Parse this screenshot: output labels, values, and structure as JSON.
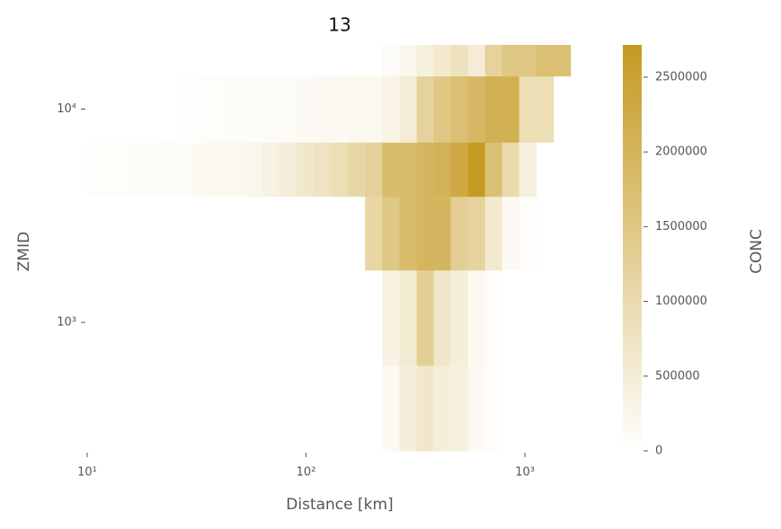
{
  "chart_data": {
    "type": "heatmap",
    "title": "13",
    "xlabel": "Distance [km]",
    "ylabel": "ZMID",
    "colorbar_label": "CONC",
    "xscale": "log",
    "yscale": "log",
    "xlim": [
      10,
      2500
    ],
    "ylim": [
      250,
      20000
    ],
    "xticks": [
      {
        "value": 10,
        "label": "10¹"
      },
      {
        "value": 100,
        "label": "10²"
      },
      {
        "value": 1000,
        "label": "10³"
      }
    ],
    "yticks": [
      {
        "value": 1000,
        "label": "10³"
      },
      {
        "value": 10000,
        "label": "10⁴"
      }
    ],
    "xedges": [
      10,
      12,
      15,
      18,
      22,
      26,
      31,
      37,
      44,
      53,
      63,
      75,
      90,
      108,
      130,
      155,
      186,
      223,
      267,
      320,
      383,
      458,
      549,
      657,
      786,
      941,
      1127,
      1349,
      1614
    ],
    "yedges": [
      250,
      630,
      1760,
      3900,
      7000,
      14300,
      20000
    ],
    "z": [
      [
        null,
        null,
        null,
        null,
        null,
        null,
        null,
        null,
        null,
        null,
        null,
        null,
        null,
        null,
        null,
        null,
        null,
        150000,
        450000,
        650000,
        450000,
        400000,
        150000,
        50000,
        null,
        null,
        null,
        null
      ],
      [
        null,
        null,
        null,
        null,
        null,
        null,
        null,
        null,
        null,
        null,
        null,
        null,
        null,
        null,
        null,
        null,
        null,
        350000,
        550000,
        1300000,
        650000,
        450000,
        200000,
        60000,
        null,
        null,
        null,
        null
      ],
      [
        null,
        null,
        null,
        null,
        null,
        null,
        null,
        null,
        null,
        null,
        null,
        null,
        null,
        null,
        null,
        null,
        1100000,
        1500000,
        1800000,
        1950000,
        1950000,
        1300000,
        1200000,
        600000,
        150000,
        50000,
        null,
        null
      ],
      [
        50000,
        60000,
        70000,
        80000,
        100000,
        120000,
        150000,
        180000,
        200000,
        250000,
        350000,
        450000,
        650000,
        750000,
        900000,
        1100000,
        1250000,
        1800000,
        1800000,
        1950000,
        2050000,
        2300000,
        2700000,
        1700000,
        1000000,
        400000,
        null,
        null
      ],
      [
        null,
        null,
        null,
        null,
        null,
        40000,
        50000,
        60000,
        70000,
        80000,
        100000,
        120000,
        140000,
        150000,
        160000,
        180000,
        200000,
        300000,
        500000,
        1200000,
        1500000,
        1700000,
        1900000,
        2100000,
        2100000,
        900000,
        900000,
        null
      ],
      [
        null,
        null,
        null,
        null,
        null,
        null,
        null,
        null,
        null,
        null,
        null,
        null,
        null,
        null,
        null,
        null,
        null,
        100000,
        250000,
        400000,
        600000,
        800000,
        500000,
        1200000,
        1500000,
        1500000,
        1700000,
        1700000
      ]
    ],
    "colormap": [
      "#ffffff",
      "#c59a21"
    ],
    "clim": [
      0,
      2716000
    ],
    "cticks": [
      0,
      500000,
      1000000,
      1500000,
      2000000,
      2500000
    ]
  }
}
